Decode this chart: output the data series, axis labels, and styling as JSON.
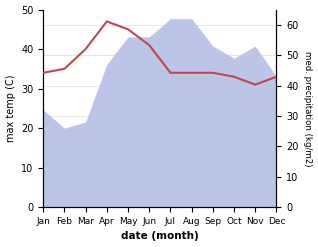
{
  "months": [
    "Jan",
    "Feb",
    "Mar",
    "Apr",
    "May",
    "Jun",
    "Jul",
    "Aug",
    "Sep",
    "Oct",
    "Nov",
    "Dec"
  ],
  "month_x": [
    0,
    1,
    2,
    3,
    4,
    5,
    6,
    7,
    8,
    9,
    10,
    11
  ],
  "max_temp": [
    34,
    35,
    40,
    47,
    45,
    41,
    34,
    34,
    34,
    33,
    31,
    33
  ],
  "precipitation_right": [
    32,
    26,
    28,
    47,
    56,
    56,
    62,
    62,
    53,
    49,
    53,
    43
  ],
  "temp_color": "#c0474a",
  "precip_fill_color": "#bcc5e8",
  "ylim_left": [
    0,
    50
  ],
  "ylim_right": [
    0,
    65
  ],
  "yticks_left": [
    0,
    10,
    20,
    30,
    40,
    50
  ],
  "yticks_right": [
    0,
    10,
    20,
    30,
    40,
    50,
    60
  ],
  "ylabel_left": "max temp (C)",
  "ylabel_right": "med. precipitation (kg/m2)",
  "xlabel": "date (month)",
  "bg_color": "#ffffff",
  "temp_linewidth": 1.5,
  "grid_color": "#dddddd"
}
